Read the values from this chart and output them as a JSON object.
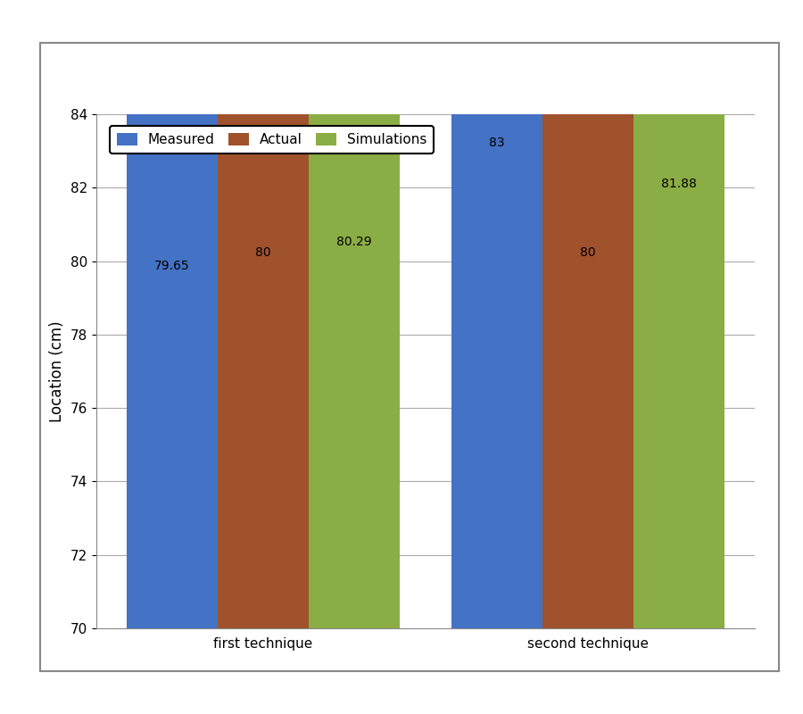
{
  "categories": [
    "first technique",
    "second technique"
  ],
  "series": {
    "Measured": [
      79.65,
      83
    ],
    "Actual": [
      80,
      80
    ],
    "Simulations": [
      80.29,
      81.88
    ]
  },
  "bar_colors": {
    "Measured": "#4472C4",
    "Actual": "#A0522D",
    "Simulations": "#8BAD45"
  },
  "ylabel": "Location (cm)",
  "ylim": [
    70,
    84
  ],
  "yticks": [
    70,
    72,
    74,
    76,
    78,
    80,
    82,
    84
  ],
  "legend_labels": [
    "Measured",
    "Actual",
    "Simulations"
  ],
  "bar_width": 0.28,
  "axis_fontsize": 12,
  "tick_fontsize": 11,
  "label_fontsize": 10,
  "legend_fontsize": 11,
  "background_color": "#FFFFFF",
  "plot_bg_color": "#FFFFFF",
  "grid_color": "#AAAAAA",
  "border_color": "#888888"
}
